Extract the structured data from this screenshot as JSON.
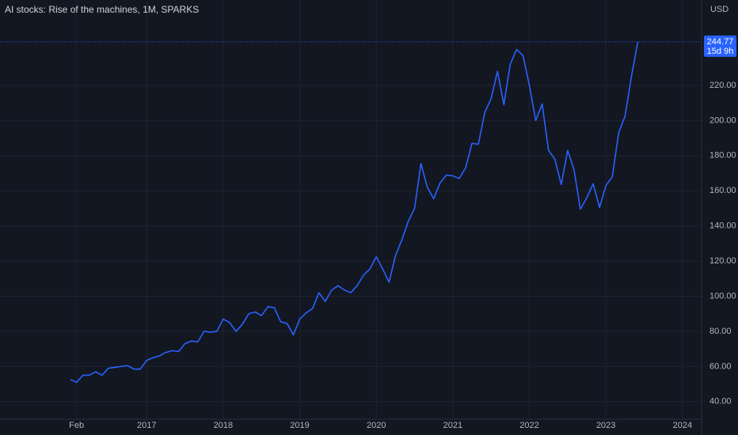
{
  "chart_data": {
    "type": "line",
    "title": "AI stocks: Rise of the machines, 1M, SPARKS",
    "currency": "USD",
    "countdown": "15d 9h",
    "color": "#2962ff",
    "grid": true,
    "x": [
      "2016-01",
      "2016-02",
      "2016-03",
      "2016-04",
      "2016-05",
      "2016-06",
      "2016-07",
      "2016-08",
      "2016-09",
      "2016-10",
      "2016-11",
      "2016-12",
      "2017-01",
      "2017-02",
      "2017-03",
      "2017-04",
      "2017-05",
      "2017-06",
      "2017-07",
      "2017-08",
      "2017-09",
      "2017-10",
      "2017-11",
      "2017-12",
      "2018-01",
      "2018-02",
      "2018-03",
      "2018-04",
      "2018-05",
      "2018-06",
      "2018-07",
      "2018-08",
      "2018-09",
      "2018-10",
      "2018-11",
      "2018-12",
      "2019-01",
      "2019-02",
      "2019-03",
      "2019-04",
      "2019-05",
      "2019-06",
      "2019-07",
      "2019-08",
      "2019-09",
      "2019-10",
      "2019-11",
      "2019-12",
      "2020-01",
      "2020-02",
      "2020-03",
      "2020-04",
      "2020-05",
      "2020-06",
      "2020-07",
      "2020-08",
      "2020-09",
      "2020-10",
      "2020-11",
      "2020-12",
      "2021-01",
      "2021-02",
      "2021-03",
      "2021-04",
      "2021-05",
      "2021-06",
      "2021-07",
      "2021-08",
      "2021-09",
      "2021-10",
      "2021-11",
      "2021-12",
      "2022-01",
      "2022-02",
      "2022-03",
      "2022-04",
      "2022-05",
      "2022-06",
      "2022-07",
      "2022-08",
      "2022-09",
      "2022-10",
      "2022-11",
      "2022-12",
      "2023-01",
      "2023-02",
      "2023-03",
      "2023-04",
      "2023-05",
      "2023-06"
    ],
    "values": [
      52.6,
      51,
      55,
      55,
      57,
      55,
      59,
      59.5,
      60,
      60.5,
      58.5,
      58.5,
      63.5,
      65,
      66,
      68,
      69,
      68.5,
      73,
      74.5,
      74,
      80,
      79.5,
      80,
      87,
      85,
      80,
      84,
      90,
      91,
      89,
      94,
      93.5,
      85.5,
      84.5,
      78,
      87,
      90.5,
      93,
      102,
      97,
      103.5,
      106,
      103.5,
      102,
      106,
      112,
      115.5,
      122.5,
      115.5,
      108,
      123,
      132,
      142.5,
      150,
      175.5,
      162,
      155.5,
      164.5,
      169,
      168.5,
      167,
      173,
      187,
      186.5,
      204.5,
      212.5,
      228,
      209,
      232,
      240.5,
      237,
      220,
      200,
      209.5,
      183,
      178,
      163.5,
      183,
      172,
      149.5,
      156,
      164,
      150.5,
      163,
      168,
      193,
      202.5,
      225,
      244.77
    ],
    "xlim": [
      "2015-02",
      "2024-04"
    ],
    "xticks": [
      {
        "value": "2016-02",
        "label": "Feb"
      },
      {
        "value": "2017-01",
        "label": "2017"
      },
      {
        "value": "2018-01",
        "label": "2018"
      },
      {
        "value": "2019-01",
        "label": "2019"
      },
      {
        "value": "2020-01",
        "label": "2020"
      },
      {
        "value": "2021-01",
        "label": "2021"
      },
      {
        "value": "2022-01",
        "label": "2022"
      },
      {
        "value": "2023-01",
        "label": "2023"
      },
      {
        "value": "2024-01",
        "label": "2024"
      }
    ],
    "ylim": [
      30,
      265
    ],
    "yticks": [
      {
        "value": 40,
        "label": "40.00"
      },
      {
        "value": 60,
        "label": "60.00"
      },
      {
        "value": 80,
        "label": "80.00"
      },
      {
        "value": 100,
        "label": "100.00"
      },
      {
        "value": 120,
        "label": "120.00"
      },
      {
        "value": 140,
        "label": "140.00"
      },
      {
        "value": 160,
        "label": "160.00"
      },
      {
        "value": 180,
        "label": "180.00"
      },
      {
        "value": 200,
        "label": "200.00"
      },
      {
        "value": 220,
        "label": "220.00"
      }
    ]
  }
}
